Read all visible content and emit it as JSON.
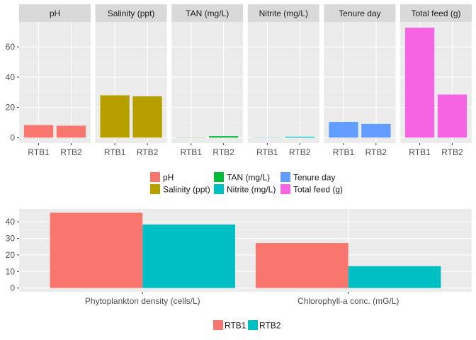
{
  "chart_data": [
    {
      "type": "bar",
      "layout": "faceted",
      "categories": [
        "RTB1",
        "RTB2"
      ],
      "ylim": [
        -3.6,
        76.5
      ],
      "yticks": [
        0,
        20,
        40,
        60
      ],
      "grid": true,
      "legend_position": "bottom",
      "facets": [
        {
          "name": "pH",
          "color": "#F8766D",
          "values": [
            8.3,
            7.9
          ]
        },
        {
          "name": "Salinity (ppt)",
          "color": "#B79F00",
          "values": [
            28.0,
            27.3
          ]
        },
        {
          "name": "TAN (mg/L)",
          "color": "#00BA38",
          "values": [
            0.05,
            1.0
          ]
        },
        {
          "name": "Nitrite (mg/L)",
          "color": "#00BFC4",
          "values": [
            0.02,
            0.6
          ]
        },
        {
          "name": "Tenure day",
          "color": "#619CFF",
          "values": [
            10.4,
            9.1
          ]
        },
        {
          "name": "Total feed (g)",
          "color": "#F564E3",
          "values": [
            72.7,
            28.5
          ]
        }
      ],
      "legend": [
        {
          "label": "pH",
          "color": "#F8766D"
        },
        {
          "label": "Salinity (ppt)",
          "color": "#B79F00"
        },
        {
          "label": "TAN (mg/L)",
          "color": "#00BA38"
        },
        {
          "label": "Nitrite (mg/L)",
          "color": "#00BFC4"
        },
        {
          "label": "Tenure day",
          "color": "#619CFF"
        },
        {
          "label": "Total feed (g)",
          "color": "#F564E3"
        }
      ]
    },
    {
      "type": "bar",
      "layout": "grouped",
      "categories": [
        "Phytoplankton density (cells/L)",
        "Chlorophyll-a conc. (mG/L)"
      ],
      "series": [
        {
          "name": "RTB1",
          "color": "#F8766D",
          "values": [
            45.5,
            27.2
          ]
        },
        {
          "name": "RTB2",
          "color": "#00BFC4",
          "values": [
            38.4,
            13.2
          ]
        }
      ],
      "ylim": [
        -2.3,
        47.8
      ],
      "yticks": [
        0,
        10,
        20,
        30,
        40
      ],
      "grid": true,
      "legend_position": "bottom"
    }
  ]
}
